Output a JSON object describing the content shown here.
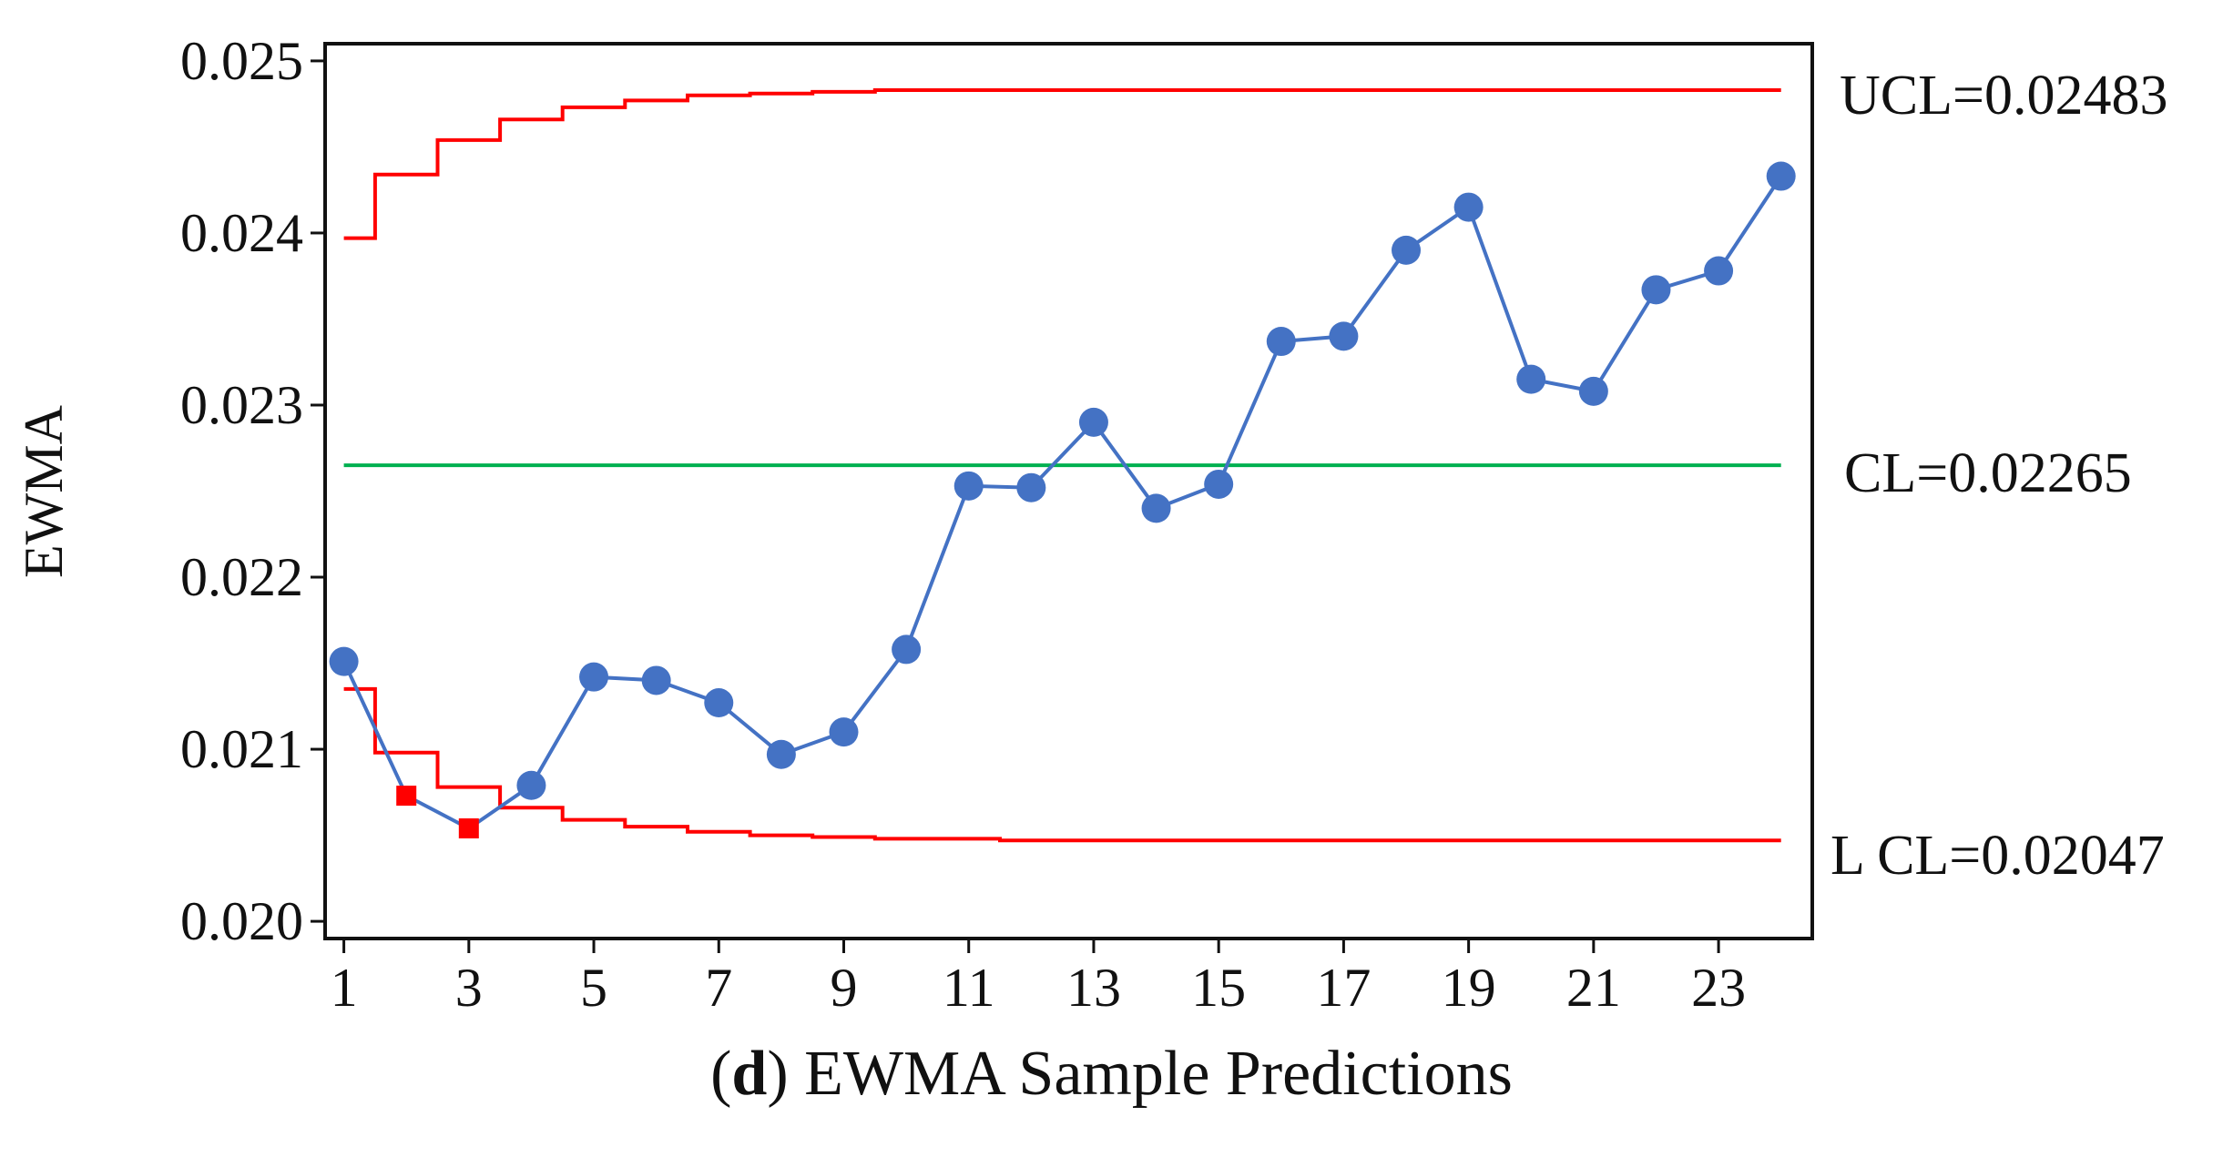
{
  "chart_data": {
    "type": "line",
    "ylabel": "EWMA",
    "xlabel": "",
    "ylim": [
      0.0199,
      0.0251
    ],
    "xlim": [
      0.7,
      24.5
    ],
    "x_ticks": [
      1,
      3,
      5,
      7,
      9,
      11,
      13,
      15,
      17,
      19,
      21,
      23
    ],
    "y_ticks": [
      0.02,
      0.021,
      0.022,
      0.023,
      0.024,
      0.025
    ],
    "y_tick_labels": [
      "0.020",
      "0.021",
      "0.022",
      "0.023",
      "0.024",
      "0.025"
    ],
    "grid": false,
    "series": [
      {
        "name": "EWMA",
        "color": "#4472c4",
        "x": [
          1,
          2,
          3,
          4,
          5,
          6,
          7,
          8,
          9,
          10,
          11,
          12,
          13,
          14,
          15,
          16,
          17,
          18,
          19,
          20,
          21,
          22,
          23,
          24
        ],
        "values": [
          0.02151,
          0.02073,
          0.02054,
          0.02079,
          0.02142,
          0.0214,
          0.02127,
          0.02097,
          0.0211,
          0.02158,
          0.02253,
          0.02252,
          0.0229,
          0.0224,
          0.02254,
          0.02337,
          0.0234,
          0.0239,
          0.02415,
          0.02315,
          0.02308,
          0.02367,
          0.02378,
          0.02433
        ],
        "out_of_control_points": [
          2,
          3
        ],
        "out_of_control_color": "#ff0000"
      }
    ],
    "control_limits": {
      "ucl": {
        "label": "UCL=0.02483",
        "color": "#ff0000",
        "values": [
          0.02397,
          0.02434,
          0.02454,
          0.02466,
          0.02473,
          0.02477,
          0.0248,
          0.02481,
          0.02482,
          0.02483,
          0.02483,
          0.02483,
          0.02483,
          0.02483,
          0.02483,
          0.02483,
          0.02483,
          0.02483,
          0.02483,
          0.02483,
          0.02483,
          0.02483,
          0.02483,
          0.02483
        ]
      },
      "cl": {
        "label": "CL=0.02265",
        "color": "#00b050",
        "value": 0.02265
      },
      "lcl": {
        "label": "L CL=0.02047",
        "color": "#ff0000",
        "values": [
          0.02135,
          0.02098,
          0.02078,
          0.02066,
          0.02059,
          0.02055,
          0.02052,
          0.0205,
          0.02049,
          0.02048,
          0.02048,
          0.02047,
          0.02047,
          0.02047,
          0.02047,
          0.02047,
          0.02047,
          0.02047,
          0.02047,
          0.02047,
          0.02047,
          0.02047,
          0.02047,
          0.02047
        ]
      }
    }
  },
  "caption": {
    "letter": "d",
    "open_paren": "(",
    "close_paren": ")",
    "text": " EWMA Sample Predictions"
  }
}
